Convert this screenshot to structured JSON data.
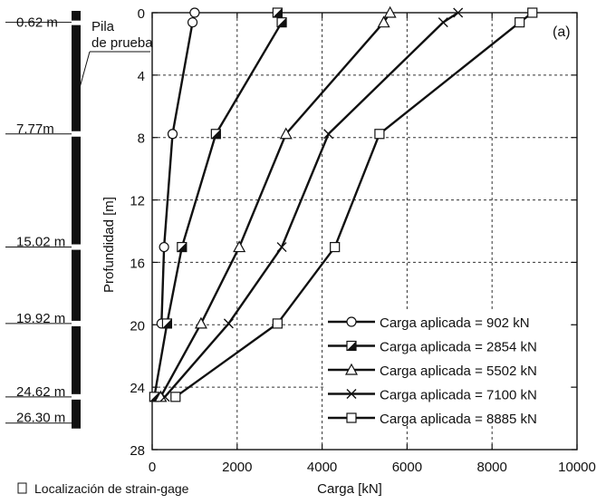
{
  "chart_data": {
    "type": "line",
    "panel_label": "(a)",
    "xlabel": "Carga [kN]",
    "ylabel": "Profundidad [m]",
    "xlim": [
      0,
      10000
    ],
    "ylim": [
      0,
      28
    ],
    "y_inverted": true,
    "x_axis_position": "top",
    "x_ticks": [
      "0",
      "2000",
      "4000",
      "6000",
      "8000",
      "10000"
    ],
    "y_ticks": [
      "0",
      "4",
      "8",
      "12",
      "16",
      "20",
      "24",
      "28"
    ],
    "grid": true,
    "legend_position": "bottom-right",
    "series": [
      {
        "name": "Carga aplicada = 902 kN",
        "marker": "circle",
        "loads": [
          1000,
          950,
          480,
          280,
          220
        ],
        "depths": [
          0,
          0.62,
          7.77,
          15.02,
          19.92
        ]
      },
      {
        "name": "Carga aplicada = 2854 kN",
        "marker": "half-filled-square",
        "loads": [
          2950,
          3050,
          1500,
          700,
          350,
          50
        ],
        "depths": [
          0,
          0.62,
          7.77,
          15.02,
          19.92,
          24.62
        ]
      },
      {
        "name": "Carga aplicada = 5502 kN",
        "marker": "triangle",
        "loads": [
          5600,
          5450,
          3150,
          2050,
          1150,
          200
        ],
        "depths": [
          0,
          0.62,
          7.77,
          15.02,
          19.92,
          24.62
        ]
      },
      {
        "name": "Carga aplicada = 7100 kN",
        "marker": "x",
        "loads": [
          7200,
          6850,
          4150,
          3050,
          1800,
          300
        ],
        "depths": [
          0,
          0.62,
          7.77,
          15.02,
          19.92,
          24.62
        ]
      },
      {
        "name": "Carga aplicada = 8885 kN",
        "marker": "square",
        "loads": [
          8950,
          8650,
          5350,
          4300,
          2950,
          550
        ],
        "depths": [
          0,
          0.62,
          7.77,
          15.02,
          19.92,
          24.62
        ]
      }
    ]
  },
  "pile": {
    "label_line1": "Pila",
    "label_line2": "de prueba",
    "gages": [
      {
        "label": "0.62 m",
        "depth": 0.62
      },
      {
        "label": "7.77m",
        "depth": 7.77
      },
      {
        "label": "15.02 m",
        "depth": 15.02
      },
      {
        "label": "19.92 m",
        "depth": 19.92
      },
      {
        "label": "24.62 m",
        "depth": 24.62
      },
      {
        "label": "26.30 m",
        "depth": 26.3
      }
    ]
  },
  "footer": {
    "gage_legend_label": "Localización de strain-gage"
  }
}
